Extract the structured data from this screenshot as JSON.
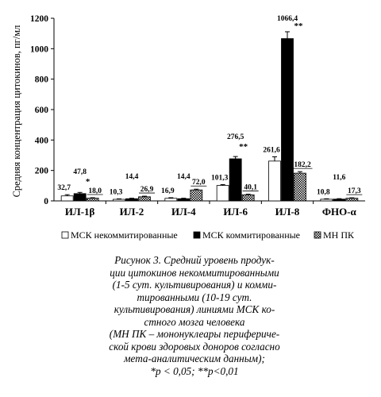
{
  "chart_data": {
    "type": "bar",
    "ylabel": "Средняя концентрация цитокинов, пг/мл",
    "ylim": [
      0,
      1200
    ],
    "yticks": [
      0,
      200,
      400,
      600,
      800,
      1000,
      1200
    ],
    "grid": false,
    "legend_position": "bottom",
    "categories": [
      "ИЛ-1β",
      "ИЛ-2",
      "ИЛ-4",
      "ИЛ-6",
      "ИЛ-8",
      "ФНО-α"
    ],
    "series": [
      {
        "name": "МСК некоммитированные",
        "color": "#ffffff",
        "pattern": "white",
        "values": [
          32.7,
          10.3,
          16.9,
          101.3,
          261.6,
          10.8
        ],
        "labels": [
          "32,7",
          "10,3",
          "16,9",
          "101,3",
          "261,6",
          "10,8"
        ],
        "errors": [
          8,
          3,
          4,
          6,
          28,
          3
        ]
      },
      {
        "name": "МСК коммитированные",
        "color": "#000000",
        "pattern": "black",
        "values": [
          47.8,
          14.4,
          14.4,
          276.5,
          1066.4,
          11.6
        ],
        "labels": [
          "47,8",
          "14,4",
          "14,4",
          "276,5",
          "1066,4",
          "11,6"
        ],
        "errors": [
          8,
          3,
          3,
          15,
          45,
          3
        ],
        "significance": [
          "*",
          "",
          "",
          "**",
          "**",
          ""
        ]
      },
      {
        "name": "МН ПК",
        "color": "#555555",
        "pattern": "checker",
        "values": [
          18.0,
          26.9,
          72.0,
          40.1,
          182.2,
          17.3
        ],
        "labels": [
          "18,0",
          "26,9",
          "72,0",
          "40,1",
          "182,2",
          "17,3"
        ],
        "errors": [
          3,
          4,
          5,
          4,
          10,
          3
        ]
      }
    ]
  },
  "caption": {
    "lines": [
      "Рисунок 3. Средний уровень продук-",
      "ции цитокинов некоммитированными",
      "(1-5 сут. культивирования) и комми-",
      "тированными (10-19 сут.",
      "культивирования) линиями МСК ко-",
      "стного мозга человека",
      "(МН ПК – мононуклеары перифериче-",
      "ской крови здоровых доноров согласно",
      "мета-аналитическим данным);",
      "*р < 0,05; **р<0,01"
    ]
  }
}
